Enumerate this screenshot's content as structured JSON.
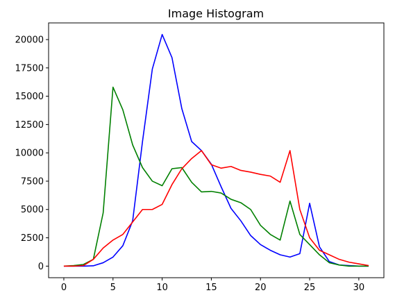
{
  "chart_data": {
    "type": "line",
    "title": "Image Histogram",
    "xlabel": "",
    "ylabel": "",
    "xlim": [
      -1.55,
      32.55
    ],
    "ylim": [
      -1022,
      21472
    ],
    "xticks": [
      0,
      5,
      10,
      15,
      20,
      25,
      30
    ],
    "yticks": [
      0,
      2500,
      5000,
      7500,
      10000,
      12500,
      15000,
      17500,
      20000
    ],
    "grid": false,
    "x": [
      0,
      1,
      2,
      3,
      4,
      5,
      6,
      7,
      8,
      9,
      10,
      11,
      12,
      13,
      14,
      15,
      16,
      17,
      18,
      19,
      20,
      21,
      22,
      23,
      24,
      25,
      26,
      27,
      28,
      29,
      30,
      31
    ],
    "series": [
      {
        "color": "#0000ff",
        "values": [
          0,
          0,
          0,
          30,
          300,
          800,
          1800,
          4000,
          11000,
          17400,
          20450,
          18400,
          13900,
          11000,
          10200,
          9000,
          7000,
          5100,
          4000,
          2700,
          1900,
          1400,
          1000,
          800,
          1100,
          5550,
          1700,
          400,
          100,
          50,
          0,
          0
        ]
      },
      {
        "color": "#008000",
        "values": [
          0,
          50,
          150,
          600,
          4700,
          15800,
          13800,
          10700,
          8700,
          7500,
          7100,
          8600,
          8700,
          7400,
          6550,
          6600,
          6450,
          5900,
          5600,
          5000,
          3600,
          2800,
          2300,
          5750,
          2800,
          1900,
          1000,
          300,
          100,
          0,
          0,
          0
        ]
      },
      {
        "color": "#ff0000",
        "values": [
          0,
          0,
          50,
          600,
          1600,
          2300,
          2800,
          3900,
          5000,
          5000,
          5450,
          7200,
          8600,
          9500,
          10200,
          8950,
          8650,
          8800,
          8450,
          8300,
          8100,
          7950,
          7400,
          10200,
          5000,
          2500,
          1400,
          1000,
          600,
          350,
          200,
          50
        ]
      }
    ]
  }
}
